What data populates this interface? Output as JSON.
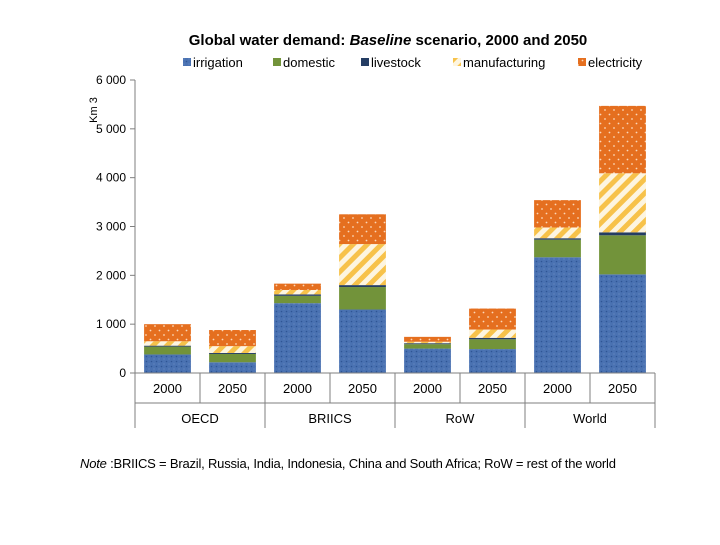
{
  "chart_data": {
    "type": "bar",
    "stacked": true,
    "title_prefix": "Global water demand: ",
    "title_italic": "Baseline",
    "title_suffix": " scenario, 2000 and 2050",
    "ylabel": "Km 3",
    "ylim": [
      0,
      6000
    ],
    "yticks": [
      0,
      1000,
      2000,
      3000,
      4000,
      5000,
      6000
    ],
    "ytick_labels": [
      "0",
      "1 000",
      "2 000",
      "3 000",
      "4 000",
      "5 000",
      "6 000"
    ],
    "legend_position": "top",
    "categories": [
      "2000",
      "2050",
      "2000",
      "2050",
      "2000",
      "2050",
      "2000",
      "2050"
    ],
    "groups": [
      "OECD",
      "BRIICS",
      "RoW",
      "World"
    ],
    "series": [
      {
        "name": "irrigation",
        "color": "#4a72b2",
        "pattern": "dots",
        "values": [
          380,
          220,
          1430,
          1300,
          500,
          490,
          2370,
          2020
        ]
      },
      {
        "name": "domestic",
        "color": "#72933a",
        "pattern": "solid",
        "values": [
          160,
          170,
          150,
          460,
          90,
          200,
          360,
          800
        ]
      },
      {
        "name": "livestock",
        "color": "#243d63",
        "pattern": "solid",
        "values": [
          20,
          20,
          30,
          40,
          20,
          30,
          30,
          60
        ]
      },
      {
        "name": "manufacturing",
        "color": "#f7c24a",
        "pattern": "stripes",
        "values": [
          90,
          140,
          90,
          840,
          30,
          170,
          220,
          1210
        ]
      },
      {
        "name": "electricity",
        "color": "#e56f1f",
        "pattern": "dots",
        "values": [
          350,
          330,
          130,
          610,
          100,
          430,
          560,
          1380
        ]
      }
    ]
  },
  "note": {
    "label": "Note",
    "text": " :BRIICS = Brazil, Russia, India, Indonesia, China and South Africa; RoW = rest of the world"
  }
}
